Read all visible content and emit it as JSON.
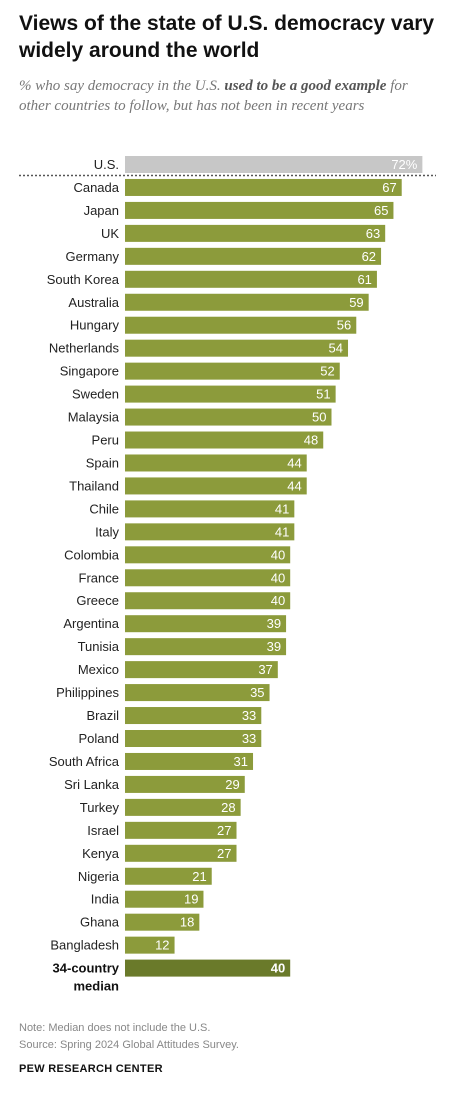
{
  "header": {
    "title": "Views of the state of U.S. democracy vary widely around the world",
    "subtitle_pre": "% who say democracy in the U.S. ",
    "subtitle_bold": "used to be a good example",
    "subtitle_post": " for other countries to follow, but has not been in recent years"
  },
  "chart_data": {
    "type": "bar",
    "orientation": "horizontal",
    "categories": [
      "U.S.",
      "Canada",
      "Japan",
      "UK",
      "Germany",
      "South Korea",
      "Australia",
      "Hungary",
      "Netherlands",
      "Singapore",
      "Sweden",
      "Malaysia",
      "Peru",
      "Spain",
      "Thailand",
      "Chile",
      "Italy",
      "Colombia",
      "France",
      "Greece",
      "Argentina",
      "Tunisia",
      "Mexico",
      "Philippines",
      "Brazil",
      "Poland",
      "South Africa",
      "Sri Lanka",
      "Turkey",
      "Israel",
      "Kenya",
      "Nigeria",
      "India",
      "Ghana",
      "Bangladesh"
    ],
    "values": [
      72,
      67,
      65,
      63,
      62,
      61,
      59,
      56,
      54,
      52,
      51,
      50,
      48,
      44,
      44,
      41,
      41,
      40,
      40,
      40,
      39,
      39,
      37,
      35,
      33,
      33,
      31,
      29,
      28,
      27,
      27,
      21,
      19,
      18,
      12
    ],
    "value_labels": [
      "72%",
      "67",
      "65",
      "63",
      "62",
      "61",
      "59",
      "56",
      "54",
      "52",
      "51",
      "50",
      "48",
      "44",
      "44",
      "41",
      "41",
      "40",
      "40",
      "40",
      "39",
      "39",
      "37",
      "35",
      "33",
      "33",
      "31",
      "29",
      "28",
      "27",
      "27",
      "21",
      "19",
      "18",
      "12"
    ],
    "median": {
      "label_line1": "34-country",
      "label_line2": "median",
      "value": 40,
      "value_label": "40"
    },
    "xlim": [
      0,
      100
    ],
    "grid": false,
    "legend": "none",
    "colors": {
      "us": "#c7c7c7",
      "country": "#8c9b3b",
      "median": "#6a7a2a",
      "divider": "#555555"
    }
  },
  "footer": {
    "note": "Note: Median does not include the U.S.",
    "source": "Spring 2024 Global Attitudes Survey.",
    "source_prefix": "Source: ",
    "brand": "PEW RESEARCH CENTER"
  }
}
